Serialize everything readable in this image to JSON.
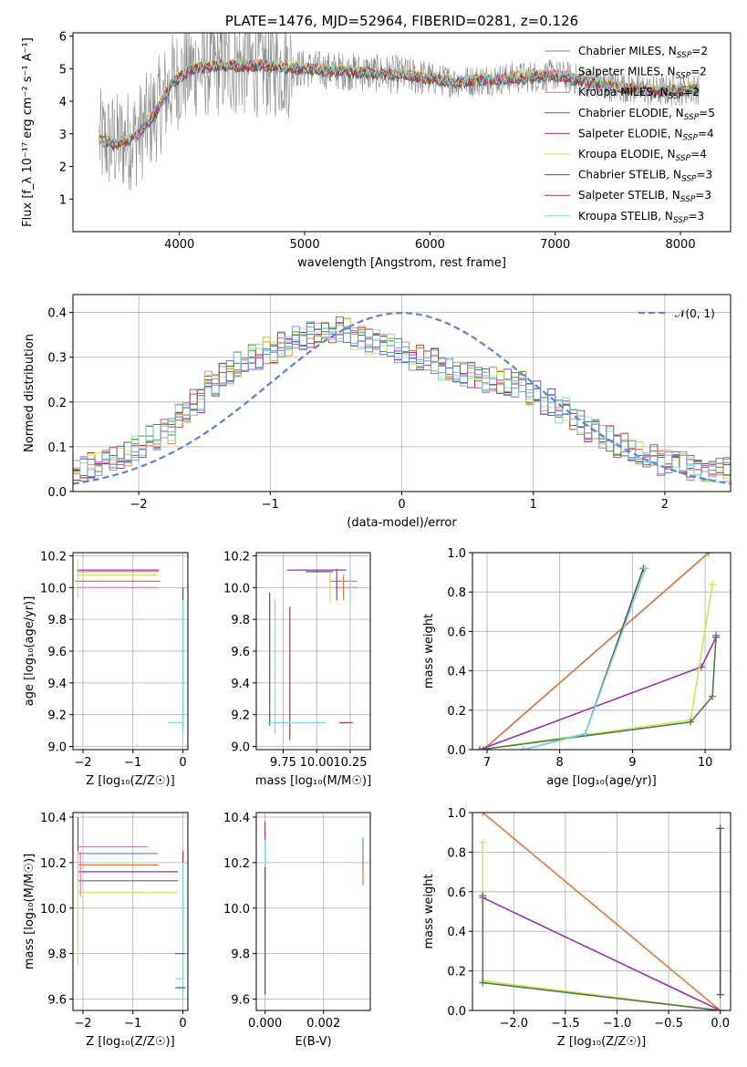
{
  "chart_data": [
    {
      "id": "spectrum",
      "type": "line",
      "title": "PLATE=1476, MJD=52964, FIBERID=0281, z=0.126",
      "xlabel": "wavelength [Angstrom, rest frame]",
      "ylabel": "Flux [f_λ 10⁻¹⁷ erg cm⁻² s⁻¹ A⁻¹]",
      "xlim": [
        3150,
        8400
      ],
      "ylim": [
        0,
        6.1
      ],
      "xticks": [
        4000,
        5000,
        6000,
        7000,
        8000
      ],
      "yticks": [
        1,
        2,
        3,
        4,
        5,
        6
      ],
      "grid": false,
      "legend_position": "right",
      "continuum": {
        "x": [
          3360,
          3500,
          3650,
          3800,
          3950,
          4100,
          4300,
          4600,
          5000,
          5400,
          5800,
          6200,
          6600,
          7000,
          7400,
          7800,
          8150
        ],
        "y": [
          2.8,
          2.7,
          2.9,
          3.6,
          4.6,
          5.0,
          5.1,
          5.1,
          5.0,
          4.9,
          4.8,
          4.6,
          4.7,
          4.8,
          4.5,
          4.3,
          4.4
        ]
      },
      "series": [
        {
          "name": "Chabrier MILES",
          "nssp": "2",
          "color": "#6a8fd1"
        },
        {
          "name": "Salpeter MILES",
          "nssp": "2",
          "color": "#e07aa8"
        },
        {
          "name": "Kroupa MILES",
          "nssp": "2",
          "color": "#e07a3a"
        },
        {
          "name": "Chabrier ELODIE",
          "nssp": "5",
          "color": "#4d7a50"
        },
        {
          "name": "Salpeter ELODIE",
          "nssp": "4",
          "color": "#9a2fb6"
        },
        {
          "name": "Kroupa ELODIE",
          "nssp": "4",
          "color": "#c9e84a"
        },
        {
          "name": "Chabrier STELIB",
          "nssp": "3",
          "color": "#555555"
        },
        {
          "name": "Salpeter STELIB",
          "nssp": "3",
          "color": "#c0302a"
        },
        {
          "name": "Kroupa STELIB",
          "nssp": "3",
          "color": "#7fd6dc"
        }
      ],
      "data_color": "#888888"
    },
    {
      "id": "residuals",
      "type": "line",
      "xlabel": "(data-model)/error",
      "ylabel": "Normed distribution",
      "xlim": [
        -2.5,
        2.5
      ],
      "ylim": [
        0,
        0.44
      ],
      "xticks": [
        -2,
        -1,
        0,
        1,
        2
      ],
      "yticks": [
        0.0,
        0.1,
        0.2,
        0.3,
        0.4
      ],
      "grid": true,
      "legend_position": "top-right",
      "reference": {
        "name": "𝒩(0, 1)",
        "mean": 0,
        "sigma": 1,
        "color": "#5b84d6"
      },
      "hist_bin_width": 0.1,
      "hist_center": [
        0.052,
        0.052,
        0.06,
        0.06,
        0.075,
        0.075,
        0.08,
        0.08,
        0.095,
        0.095,
        0.12,
        0.12,
        0.135,
        0.135,
        0.17,
        0.17,
        0.2,
        0.2,
        0.24,
        0.24,
        0.265,
        0.265,
        0.285,
        0.285,
        0.3,
        0.3,
        0.315,
        0.315,
        0.33,
        0.33,
        0.34,
        0.34,
        0.35,
        0.35,
        0.355,
        0.355,
        0.36,
        0.36,
        0.345,
        0.345,
        0.335,
        0.335,
        0.33,
        0.33,
        0.315,
        0.315,
        0.3,
        0.3,
        0.29,
        0.29,
        0.275,
        0.275,
        0.265,
        0.265,
        0.26,
        0.26,
        0.25,
        0.25,
        0.245,
        0.245,
        0.24,
        0.24,
        0.22,
        0.22,
        0.2,
        0.2,
        0.18,
        0.18,
        0.155,
        0.155,
        0.14,
        0.14,
        0.12,
        0.12,
        0.105,
        0.105,
        0.09,
        0.09,
        0.075,
        0.075,
        0.065,
        0.065,
        0.06,
        0.06,
        0.055,
        0.055,
        0.05,
        0.05,
        0.048,
        0.048
      ],
      "hist_amp": 0.03
    },
    {
      "id": "age_vs_Z",
      "type": "scatter",
      "xlabel": "Z [log₁₀(Z/Z☉)]",
      "ylabel": "age  [log₁₀(age/yr)]",
      "xlim": [
        -2.2,
        0.1
      ],
      "ylim": [
        8.98,
        10.22
      ],
      "xticks": [
        -2,
        -1,
        0
      ],
      "yticks": [
        9.0,
        9.2,
        9.4,
        9.6,
        9.8,
        10.0,
        10.2
      ],
      "grid": true,
      "points": [
        {
          "x": -1.3,
          "xerr": 0.82,
          "y": 10.11,
          "yerr": 0.0,
          "color": "#9a2fb6"
        },
        {
          "x": -1.3,
          "xerr": 0.82,
          "y": 10.1,
          "yerr": 0.0,
          "color": "#e07aa8"
        },
        {
          "x": -1.3,
          "xerr": 0.8,
          "y": 10.08,
          "yerr": 0.0,
          "color": "#c9e84a"
        },
        {
          "x": -1.3,
          "xerr": 0.85,
          "y": 10.04,
          "yerr": 0.0,
          "color": "#e07a3a"
        },
        {
          "x": -1.3,
          "xerr": 0.8,
          "y": 10.0,
          "yerr": 0.0,
          "color": "#e07aa8"
        },
        {
          "x": -2.1,
          "xerr": 0.0,
          "y": 10.05,
          "yerr": 0.12,
          "color": "#c9e84a"
        },
        {
          "x": 0.0,
          "xerr": 0.0,
          "y": 9.55,
          "yerr": 0.45,
          "color": "#555555"
        },
        {
          "x": 0.0,
          "xerr": 0.0,
          "y": 9.5,
          "yerr": 0.42,
          "color": "#7fd6dc"
        },
        {
          "x": -0.15,
          "xerr": 0.15,
          "y": 9.15,
          "yerr": 0.0,
          "color": "#7fd6dc"
        }
      ]
    },
    {
      "id": "age_vs_mass",
      "type": "scatter",
      "xlabel": "mass [log₁₀(M/M☉)]",
      "ylabel": "",
      "xlim": [
        9.55,
        10.4
      ],
      "ylim": [
        8.98,
        10.22
      ],
      "xticks": [
        9.75,
        10.0,
        10.25
      ],
      "xticklabels": [
        "9.75",
        "10.00",
        "10.25"
      ],
      "yticks": [
        9.0,
        9.2,
        9.4,
        9.6,
        9.8,
        10.0,
        10.2
      ],
      "grid": true,
      "points": [
        {
          "x": 10.0,
          "xerr": 0.22,
          "y": 10.11,
          "yerr": 0.0,
          "color": "#9a2fb6"
        },
        {
          "x": 10.02,
          "xerr": 0.1,
          "y": 10.1,
          "yerr": 0.0,
          "color": "#555555"
        },
        {
          "x": 10.2,
          "xerr": 0.1,
          "y": 10.04,
          "yerr": 0.0,
          "color": "#e07a3a"
        },
        {
          "x": 10.22,
          "xerr": 0.08,
          "y": 10.0,
          "yerr": 0.0,
          "color": "#e07aa8"
        },
        {
          "x": 10.1,
          "xerr": 0.0,
          "y": 10.0,
          "yerr": 0.1,
          "color": "#c9e84a"
        },
        {
          "x": 10.15,
          "xerr": 0.0,
          "y": 10.02,
          "yerr": 0.1,
          "color": "#9a2fb6"
        },
        {
          "x": 10.2,
          "xerr": 0.0,
          "y": 10.0,
          "yerr": 0.08,
          "color": "#e07a3a"
        },
        {
          "x": 10.25,
          "xerr": 0.0,
          "y": 10.0,
          "yerr": 0.1,
          "color": "#7fd6dc"
        },
        {
          "x": 9.65,
          "xerr": 0.0,
          "y": 9.55,
          "yerr": 0.42,
          "color": "#555555"
        },
        {
          "x": 9.69,
          "xerr": 0.0,
          "y": 9.5,
          "yerr": 0.42,
          "color": "#7fd6dc"
        },
        {
          "x": 9.8,
          "xerr": 0.0,
          "y": 9.46,
          "yerr": 0.42,
          "color": "#c0302a"
        },
        {
          "x": 9.85,
          "xerr": 0.22,
          "y": 9.15,
          "yerr": 0.0,
          "color": "#7fd6dc"
        },
        {
          "x": 10.22,
          "xerr": 0.05,
          "y": 9.15,
          "yerr": 0.0,
          "color": "#c0302a"
        }
      ]
    },
    {
      "id": "mass_weight_vs_age",
      "type": "line",
      "xlabel": "age  [log₁₀(age/yr)]",
      "ylabel": "mass weight",
      "xlim": [
        6.8,
        10.35
      ],
      "ylim": [
        0,
        1.0
      ],
      "xticks": [
        7,
        8,
        9,
        10
      ],
      "yticks": [
        0.0,
        0.2,
        0.4,
        0.6,
        0.8,
        1.0
      ],
      "grid": true,
      "series": [
        {
          "name": "Chabrier MILES",
          "color": "#6a8fd1",
          "x": [
            6.95,
            10.05
          ],
          "y": [
            0.0,
            1.0
          ]
        },
        {
          "name": "Kroupa MILES",
          "color": "#e07a3a",
          "x": [
            6.95,
            10.05
          ],
          "y": [
            0.0,
            1.0
          ]
        },
        {
          "name": "Salpeter ELODIE",
          "color": "#9a2fb6",
          "x": [
            6.9,
            9.95,
            10.15
          ],
          "y": [
            0.0,
            0.42,
            0.57
          ]
        },
        {
          "name": "Kroupa ELODIE",
          "color": "#c9e84a",
          "x": [
            6.9,
            9.8,
            10.1
          ],
          "y": [
            0.0,
            0.15,
            0.84
          ]
        },
        {
          "name": "Chabrier ELODIE",
          "color": "#4d7a50",
          "x": [
            6.9,
            9.8,
            10.1,
            10.15
          ],
          "y": [
            0.0,
            0.14,
            0.27,
            0.58
          ]
        },
        {
          "name": "Chabrier STELIB",
          "color": "#555555",
          "x": [
            7.5,
            8.35,
            9.15
          ],
          "y": [
            0.0,
            0.08,
            0.92
          ]
        },
        {
          "name": "Kroupa STELIB",
          "color": "#7fd6dc",
          "x": [
            7.5,
            8.35,
            9.18
          ],
          "y": [
            0.0,
            0.08,
            0.92
          ]
        }
      ]
    },
    {
      "id": "mass_vs_Z",
      "type": "scatter",
      "xlabel": "Z [log₁₀(Z/Z☉)]",
      "ylabel": "mass [log₁₀(M/M☉)]",
      "xlim": [
        -2.2,
        0.1
      ],
      "ylim": [
        9.55,
        10.42
      ],
      "xticks": [
        -2,
        -1,
        0
      ],
      "yticks": [
        9.6,
        9.8,
        10.0,
        10.2,
        10.4
      ],
      "grid": true,
      "points": [
        {
          "x": -1.4,
          "xerr": 0.7,
          "y": 10.27,
          "yerr": 0.0,
          "color": "#e07aa8"
        },
        {
          "x": -1.3,
          "xerr": 0.8,
          "y": 10.24,
          "yerr": 0.0,
          "color": "#6a8fd1"
        },
        {
          "x": -1.3,
          "xerr": 0.8,
          "y": 10.19,
          "yerr": 0.0,
          "color": "#e07a3a"
        },
        {
          "x": -1.1,
          "xerr": 1.0,
          "y": 10.16,
          "yerr": 0.0,
          "color": "#9a2fb6"
        },
        {
          "x": -1.1,
          "xerr": 1.0,
          "y": 10.12,
          "yerr": 0.0,
          "color": "#4d7a50"
        },
        {
          "x": -1.1,
          "xerr": 1.0,
          "y": 10.07,
          "yerr": 0.0,
          "color": "#c9e84a"
        },
        {
          "x": -2.1,
          "xerr": 0.0,
          "y": 10.3,
          "yerr": 0.1,
          "color": "#9a2fb6"
        },
        {
          "x": -2.1,
          "xerr": 0.0,
          "y": 10.0,
          "yerr": 0.25,
          "color": "#c9e84a"
        },
        {
          "x": -2.05,
          "xerr": 0.0,
          "y": 10.15,
          "yerr": 0.1,
          "color": "#e07aa8"
        },
        {
          "x": 0.0,
          "xerr": 0.0,
          "y": 10.1,
          "yerr": 0.15,
          "color": "#c0302a"
        },
        {
          "x": 0.0,
          "xerr": 0.0,
          "y": 9.9,
          "yerr": 0.3,
          "color": "#7fd6dc"
        },
        {
          "x": -0.05,
          "xerr": 0.1,
          "y": 9.8,
          "yerr": 0.0,
          "color": "#c0302a"
        },
        {
          "x": -0.05,
          "xerr": 0.1,
          "y": 9.69,
          "yerr": 0.0,
          "color": "#7fd6dc"
        },
        {
          "x": -0.05,
          "xerr": 0.1,
          "y": 9.65,
          "yerr": 0.0,
          "color": "#555555"
        }
      ]
    },
    {
      "id": "mass_vs_ebv",
      "type": "scatter",
      "xlabel": "E(B-V)",
      "ylabel": "",
      "xlim": [
        -0.0003,
        0.0036
      ],
      "ylim": [
        9.55,
        10.42
      ],
      "xticks": [
        0.0,
        0.002
      ],
      "xticklabels": [
        "0.000",
        "0.002"
      ],
      "yticks": [
        9.6,
        9.8,
        10.0,
        10.2,
        10.4
      ],
      "grid": true,
      "points": [
        {
          "x": 0.0,
          "xerr": 0.0,
          "y": 10.3,
          "yerr": 0.08,
          "color": "#9a2fb6"
        },
        {
          "x": 0.0,
          "xerr": 0.0,
          "y": 10.2,
          "yerr": 0.06,
          "color": "#c0302a"
        },
        {
          "x": 0.0,
          "xerr": 0.0,
          "y": 9.95,
          "yerr": 0.35,
          "color": "#7fd6dc"
        },
        {
          "x": 0.0,
          "xerr": 0.0,
          "y": 9.9,
          "yerr": 0.28,
          "color": "#555555"
        },
        {
          "x": 0.00335,
          "xerr": 0.0,
          "y": 10.25,
          "yerr": 0.06,
          "color": "#6a8fd1"
        },
        {
          "x": 0.00335,
          "xerr": 0.0,
          "y": 10.17,
          "yerr": 0.07,
          "color": "#e07a3a"
        }
      ]
    },
    {
      "id": "mass_weight_vs_Z",
      "type": "line",
      "xlabel": "Z [log₁₀(Z/Z☉)]",
      "ylabel": "mass weight",
      "xlim": [
        -2.4,
        0.1
      ],
      "ylim": [
        0,
        1.0
      ],
      "xticks": [
        -2.0,
        -1.5,
        -1.0,
        -0.5,
        0.0
      ],
      "yticks": [
        0.0,
        0.2,
        0.4,
        0.6,
        0.8,
        1.0
      ],
      "grid": true,
      "series": [
        {
          "name": "Kroupa MILES",
          "color": "#e07a3a",
          "x": [
            -2.3,
            0.0
          ],
          "y": [
            1.0,
            0.0
          ]
        },
        {
          "name": "Salpeter ELODIE",
          "color": "#9a2fb6",
          "x": [
            -2.3,
            0.0
          ],
          "y": [
            0.57,
            0.0
          ]
        },
        {
          "name": "Kroupa ELODIE",
          "color": "#c9e84a",
          "x": [
            -2.3,
            -2.3,
            0.0
          ],
          "y": [
            0.85,
            0.15,
            0.0
          ]
        },
        {
          "name": "Chabrier ELODIE",
          "color": "#4d7a50",
          "x": [
            -2.3,
            -2.3,
            0.0
          ],
          "y": [
            0.58,
            0.14,
            0.0
          ]
        },
        {
          "name": "Kroupa STELIB",
          "color": "#7fd6dc",
          "x": [
            0.0,
            0.0
          ],
          "y": [
            0.0,
            0.92
          ]
        },
        {
          "name": "Chabrier STELIB",
          "color": "#555555",
          "x": [
            0.0,
            0.0
          ],
          "y": [
            0.08,
            0.92
          ]
        }
      ]
    }
  ]
}
